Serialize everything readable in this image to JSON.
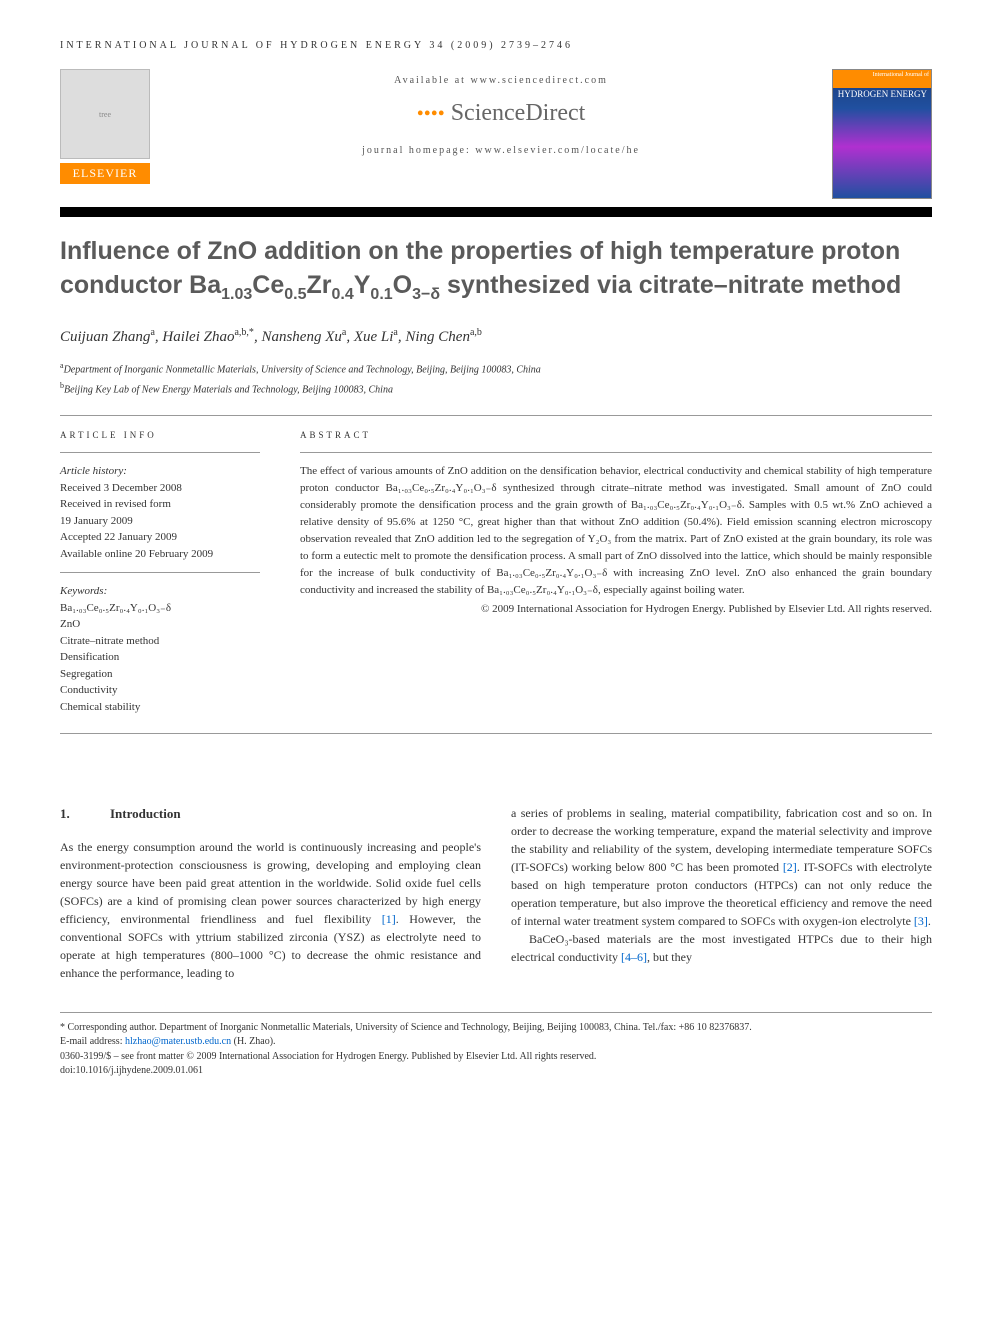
{
  "running_head": "INTERNATIONAL JOURNAL OF HYDROGEN ENERGY 34 (2009) 2739–2746",
  "header": {
    "available_at": "Available at www.sciencedirect.com",
    "sd_brand": "ScienceDirect",
    "journal_home": "journal homepage: www.elsevier.com/locate/he",
    "elsevier_label": "ELSEVIER",
    "cover_strip": "International Journal of",
    "cover_title": "HYDROGEN ENERGY"
  },
  "title_parts": {
    "pre": "Influence of ZnO addition on the properties of high temperature proton conductor Ba",
    "s1": "1.03",
    "m2": "Ce",
    "s2": "0.5",
    "m3": "Zr",
    "s3": "0.4",
    "m4": "Y",
    "s4": "0.1",
    "m5": "O",
    "s5": "3−δ",
    "post": " synthesized via citrate–nitrate method"
  },
  "authors_html": "Cuijuan Zhang<sup>a</sup>, Hailei Zhao<sup>a,b,*</sup>, Nansheng Xu<sup>a</sup>, Xue Li<sup>a</sup>, Ning Chen<sup>a,b</sup>",
  "affiliations": [
    "<sup>a</sup>Department of Inorganic Nonmetallic Materials, University of Science and Technology, Beijing, Beijing 100083, China",
    "<sup>b</sup>Beijing Key Lab of New Energy Materials and Technology, Beijing 100083, China"
  ],
  "article_info": {
    "label": "ARTICLE INFO",
    "history_label": "Article history:",
    "history": [
      "Received 3 December 2008",
      "Received in revised form",
      "19 January 2009",
      "Accepted 22 January 2009",
      "Available online 20 February 2009"
    ],
    "keywords_label": "Keywords:",
    "keywords": [
      "Ba₁.₀₃Ce₀.₅Zr₀.₄Y₀.₁O₃₋δ",
      "ZnO",
      "Citrate–nitrate method",
      "Densification",
      "Segregation",
      "Conductivity",
      "Chemical stability"
    ]
  },
  "abstract": {
    "label": "ABSTRACT",
    "text": "The effect of various amounts of ZnO addition on the densification behavior, electrical conductivity and chemical stability of high temperature proton conductor Ba₁.₀₃Ce₀.₅Zr₀.₄Y₀.₁O₃₋δ synthesized through citrate–nitrate method was investigated. Small amount of ZnO could considerably promote the densification process and the grain growth of Ba₁.₀₃Ce₀.₅Zr₀.₄Y₀.₁O₃₋δ. Samples with 0.5 wt.% ZnO achieved a relative density of 95.6% at 1250 °C, great higher than that without ZnO addition (50.4%). Field emission scanning electron microscopy observation revealed that ZnO addition led to the segregation of Y₂O₃ from the matrix. Part of ZnO existed at the grain boundary, its role was to form a eutectic melt to promote the densification process. A small part of ZnO dissolved into the lattice, which should be mainly responsible for the increase of bulk conductivity of Ba₁.₀₃Ce₀.₅Zr₀.₄Y₀.₁O₃₋δ with increasing ZnO level. ZnO also enhanced the grain boundary conductivity and increased the stability of Ba₁.₀₃Ce₀.₅Zr₀.₄Y₀.₁O₃₋δ, especially against boiling water.",
    "copyright": "© 2009 International Association for Hydrogen Energy. Published by Elsevier Ltd. All rights reserved."
  },
  "section1": {
    "num": "1.",
    "title": "Introduction",
    "col1": "As the energy consumption around the world is continuously increasing and people's environment-protection consciousness is growing, developing and employing clean energy source have been paid great attention in the worldwide. Solid oxide fuel cells (SOFCs) are a kind of promising clean power sources characterized by high energy efficiency, environmental friendliness and fuel flexibility [1]. However, the conventional SOFCs with yttrium stabilized zirconia (YSZ) as electrolyte need to operate at high temperatures (800–1000 °C) to decrease the ohmic resistance and enhance the performance, leading to",
    "col2a": "a series of problems in sealing, material compatibility, fabrication cost and so on. In order to decrease the working temperature, expand the material selectivity and improve the stability and reliability of the system, developing intermediate temperature SOFCs (IT-SOFCs) working below 800 °C has been promoted [2]. IT-SOFCs with electrolyte based on high temperature proton conductors (HTPCs) can not only reduce the operation temperature, but also improve the theoretical efficiency and remove the need of internal water treatment system compared to SOFCs with oxygen-ion electrolyte [3].",
    "col2b": "BaCeO₃-based materials are the most investigated HTPCs due to their high electrical conductivity [4–6], but they"
  },
  "footnotes": {
    "corr": "* Corresponding author. Department of Inorganic Nonmetallic Materials, University of Science and Technology, Beijing, Beijing 100083, China. Tel./fax: +86 10 82376837.",
    "email_label": "E-mail address: ",
    "email": "hlzhao@mater.ustb.edu.cn",
    "email_tail": " (H. Zhao).",
    "issn": "0360-3199/$ – see front matter © 2009 International Association for Hydrogen Energy. Published by Elsevier Ltd. All rights reserved.",
    "doi": "doi:10.1016/j.ijhydene.2009.01.061"
  },
  "colors": {
    "orange": "#ff8c00",
    "title_gray": "#5a5a5a",
    "link_blue": "#0066cc"
  }
}
